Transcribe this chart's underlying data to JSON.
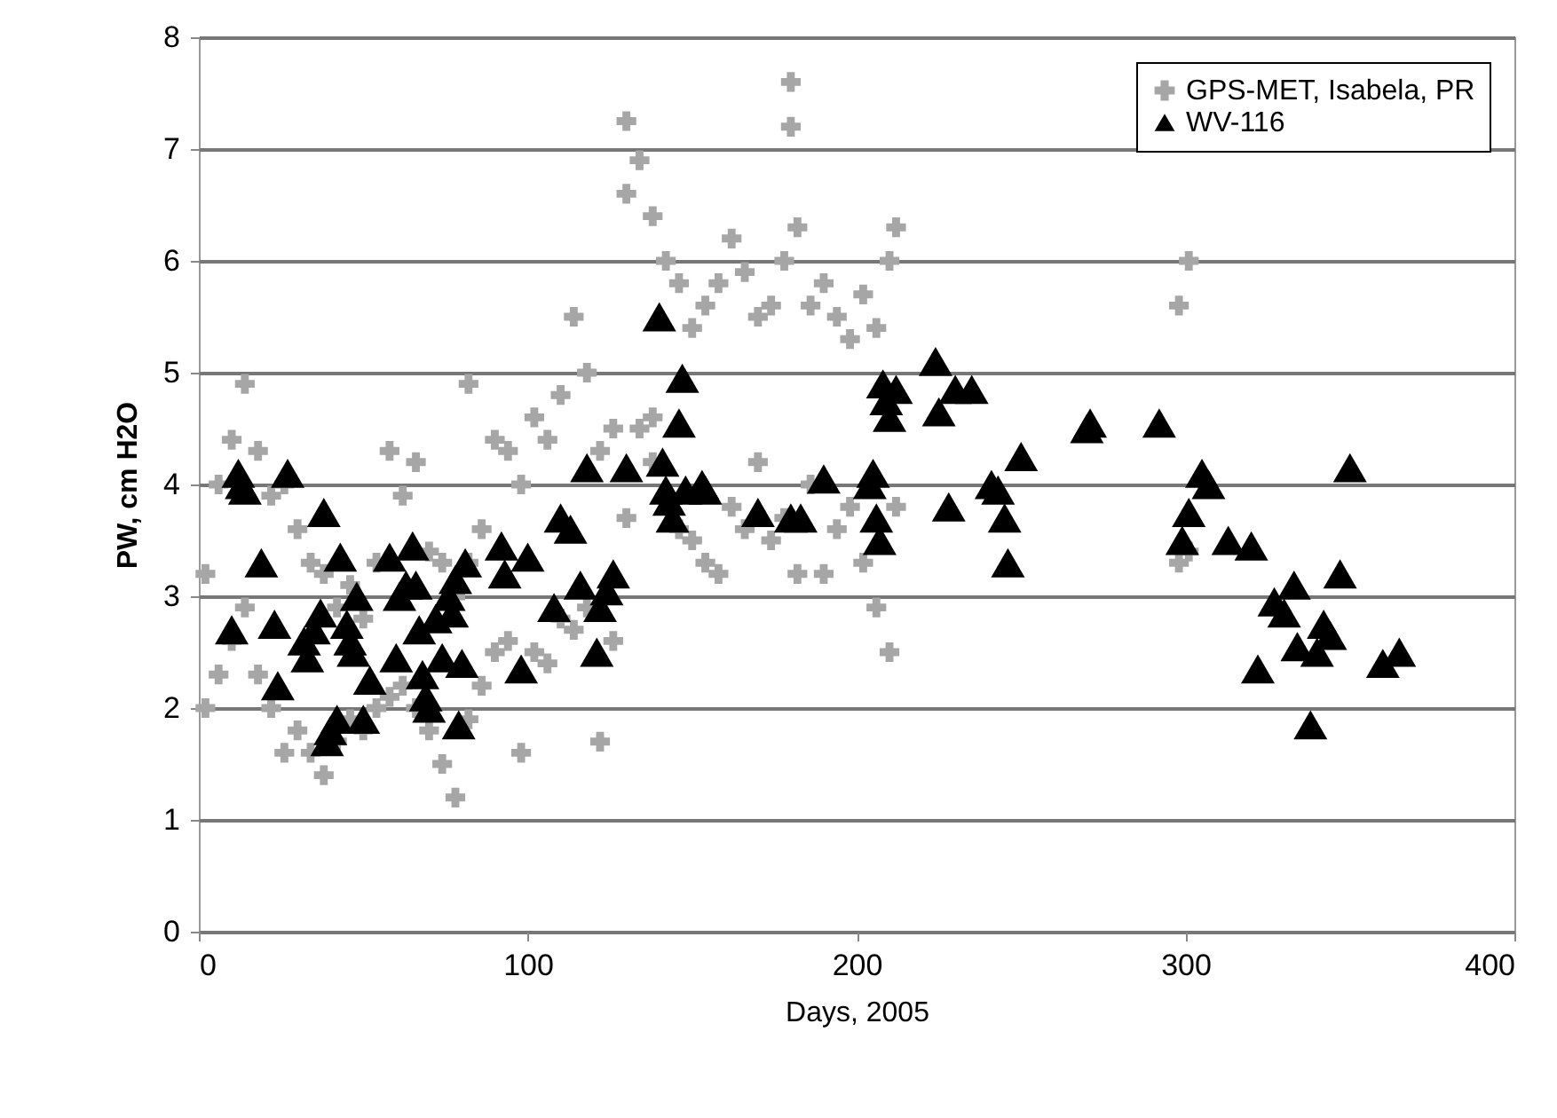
{
  "chart_data": {
    "type": "scatter",
    "xlabel": "Days, 2005",
    "ylabel": "PW, cm H2O",
    "xlim": [
      0,
      400
    ],
    "xticks": [
      0,
      100,
      200,
      300,
      400
    ],
    "ylim": [
      0,
      8
    ],
    "yticks": [
      0,
      1,
      2,
      3,
      4,
      5,
      6,
      7,
      8
    ],
    "grid": "y",
    "legend": "top right",
    "series": [
      {
        "name": "GPS-MET, Isabela, PR",
        "color": "#a6a6a6",
        "marker": "cross",
        "x": [
          2,
          2,
          6,
          6,
          10,
          10,
          14,
          14,
          18,
          18,
          22,
          22,
          26,
          26,
          30,
          30,
          34,
          34,
          38,
          38,
          42,
          42,
          46,
          46,
          50,
          50,
          54,
          54,
          58,
          58,
          62,
          62,
          66,
          66,
          70,
          70,
          74,
          74,
          78,
          78,
          82,
          82,
          86,
          86,
          90,
          90,
          94,
          94,
          98,
          98,
          102,
          102,
          106,
          106,
          110,
          110,
          114,
          114,
          118,
          118,
          122,
          122,
          126,
          126,
          130,
          130,
          134,
          134,
          138,
          138,
          138,
          142,
          146,
          146,
          150,
          150,
          154,
          154,
          158,
          158,
          162,
          162,
          166,
          166,
          170,
          170,
          174,
          174,
          178,
          178,
          182,
          182,
          186,
          186,
          190,
          190,
          194,
          194,
          198,
          198,
          202,
          202,
          206,
          206,
          210,
          210,
          212,
          212,
          298,
          298,
          301,
          301,
          130,
          180,
          180,
          82
        ],
        "values": [
          2.0,
          3.2,
          2.3,
          4.0,
          2.6,
          4.4,
          2.9,
          4.9,
          2.3,
          4.3,
          2.0,
          3.9,
          1.6,
          4.0,
          1.8,
          3.6,
          1.6,
          3.3,
          1.4,
          3.2,
          1.7,
          2.9,
          1.9,
          3.1,
          1.8,
          2.8,
          2.0,
          3.3,
          2.1,
          4.3,
          2.2,
          3.9,
          2.0,
          4.2,
          1.8,
          3.4,
          1.5,
          3.3,
          1.2,
          3.0,
          1.9,
          3.3,
          2.2,
          3.6,
          2.5,
          4.4,
          2.6,
          4.3,
          1.6,
          4.0,
          2.5,
          4.6,
          2.4,
          4.4,
          2.8,
          4.8,
          2.7,
          5.5,
          2.9,
          5.0,
          1.7,
          4.3,
          2.6,
          4.5,
          3.7,
          6.6,
          4.5,
          6.9,
          4.2,
          6.4,
          4.6,
          6.0,
          3.6,
          5.8,
          3.5,
          5.4,
          3.3,
          5.6,
          3.2,
          5.8,
          3.8,
          6.2,
          3.6,
          5.9,
          4.2,
          5.5,
          3.5,
          5.6,
          3.7,
          6.0,
          3.2,
          6.3,
          4.0,
          5.6,
          3.2,
          5.8,
          3.6,
          5.5,
          3.8,
          5.3,
          3.3,
          5.7,
          2.9,
          5.4,
          2.5,
          6.0,
          3.8,
          6.3,
          3.3,
          5.6,
          3.4,
          6.0,
          7.25,
          7.6,
          7.2,
          4.9
        ]
      },
      {
        "name": "WV-116",
        "color": "#000000",
        "marker": "triangle",
        "x": [
          10,
          12,
          13,
          14,
          19,
          23,
          24,
          27,
          32,
          33,
          35,
          37,
          38,
          39,
          40,
          42,
          43,
          45,
          46,
          47,
          48,
          50,
          52,
          58,
          60,
          61,
          63,
          65,
          66,
          67,
          68,
          69,
          70,
          72,
          74,
          76,
          77,
          78,
          79,
          80,
          81,
          92,
          93,
          98,
          100,
          108,
          110,
          113,
          116,
          118,
          121,
          122,
          124,
          126,
          130,
          140,
          141,
          142,
          143,
          144,
          146,
          147,
          148,
          153,
          154,
          170,
          180,
          183,
          190,
          204,
          205,
          206,
          207,
          208,
          209,
          210,
          212,
          224,
          225,
          228,
          230,
          235,
          241,
          243,
          245,
          246,
          250,
          270,
          271,
          292,
          299,
          301,
          305,
          307,
          313,
          320,
          322,
          327,
          330,
          333,
          334,
          338,
          340,
          342,
          344,
          347,
          350,
          360,
          365
        ],
        "values": [
          2.7,
          4.1,
          4.0,
          3.95,
          3.3,
          2.75,
          2.2,
          4.1,
          2.6,
          2.45,
          2.7,
          2.85,
          3.75,
          1.7,
          1.8,
          1.9,
          3.35,
          2.75,
          2.6,
          2.5,
          3.0,
          1.9,
          2.25,
          3.35,
          2.45,
          3.0,
          3.1,
          3.45,
          3.1,
          2.7,
          2.3,
          2.1,
          2.0,
          2.8,
          2.45,
          3.0,
          2.85,
          3.15,
          1.85,
          2.4,
          3.3,
          3.45,
          3.2,
          2.35,
          3.35,
          2.9,
          3.7,
          3.6,
          3.1,
          4.15,
          2.5,
          2.9,
          3.05,
          3.2,
          4.15,
          5.5,
          4.2,
          3.95,
          3.85,
          3.7,
          4.55,
          4.95,
          3.95,
          4.0,
          3.95,
          3.75,
          3.7,
          3.7,
          4.05,
          4.0,
          4.1,
          3.7,
          3.5,
          4.9,
          4.75,
          4.6,
          4.85,
          5.1,
          4.65,
          3.8,
          4.85,
          4.85,
          4.0,
          3.95,
          3.7,
          3.3,
          4.25,
          4.5,
          4.55,
          4.55,
          3.5,
          3.75,
          4.1,
          4.0,
          3.5,
          3.45,
          2.35,
          2.95,
          2.85,
          3.1,
          2.55,
          1.85,
          2.5,
          2.75,
          2.65,
          3.2,
          4.15,
          2.4,
          2.5
        ]
      }
    ]
  }
}
